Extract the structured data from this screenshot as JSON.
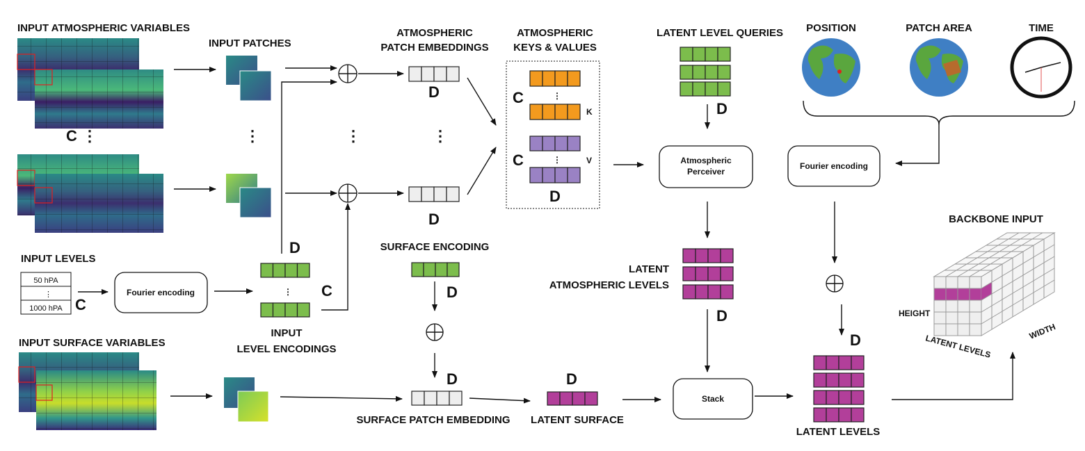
{
  "labels": {
    "input_atmospheric_variables": "INPUT ATMOSPHERIC VARIABLES",
    "input_patches": "INPUT PATCHES",
    "atm_patch_embeddings_1": "ATMOSPHERIC",
    "atm_patch_embeddings_2": "PATCH EMBEDDINGS",
    "atm_keys_values_1": "ATMOSPHERIC",
    "atm_keys_values_2": "KEYS & VALUES",
    "latent_level_queries": "LATENT LEVEL QUERIES",
    "position": "POSITION",
    "patch_area": "PATCH AREA",
    "time": "TIME",
    "backbone_input": "BACKBONE INPUT",
    "input_levels": "INPUT LEVELS",
    "input_level_encodings_1": "INPUT",
    "input_level_encodings_2": "LEVEL ENCODINGS",
    "input_surface_variables": "INPUT SURFACE VARIABLES",
    "surface_encoding": "SURFACE ENCODING",
    "surface_patch_embedding": "SURFACE PATCH EMBEDDING",
    "latent_surface": "LATENT SURFACE",
    "latent_atm_levels_1": "LATENT",
    "latent_atm_levels_2": "ATMOSPHERIC LEVELS",
    "latent_levels": "LATENT  LEVELS",
    "height": "HEIGHT",
    "width": "WIDTH",
    "cube_latent_levels": "LATENT LEVELS"
  },
  "symbols": {
    "C": "C",
    "D": "D",
    "K": "K",
    "V": "V",
    "vdots": "⋮"
  },
  "boxes": {
    "fourier_encoding_levels": "Fourier encoding",
    "fourier_encoding_pos": "Fourier encoding",
    "perceiver_1": "Atmospheric",
    "perceiver_2": "Perceiver",
    "stack": "Stack"
  },
  "levels_table": {
    "top": "50 hPA",
    "bottom": "1000 hPA"
  },
  "colors": {
    "green": "#7cbd4c",
    "orange": "#f39a1e",
    "lavender": "#9a82c4",
    "magenta": "#b23f9a",
    "gray": "#eeeeee",
    "ocean": "#3f7fc4",
    "land": "#5aa63e"
  }
}
